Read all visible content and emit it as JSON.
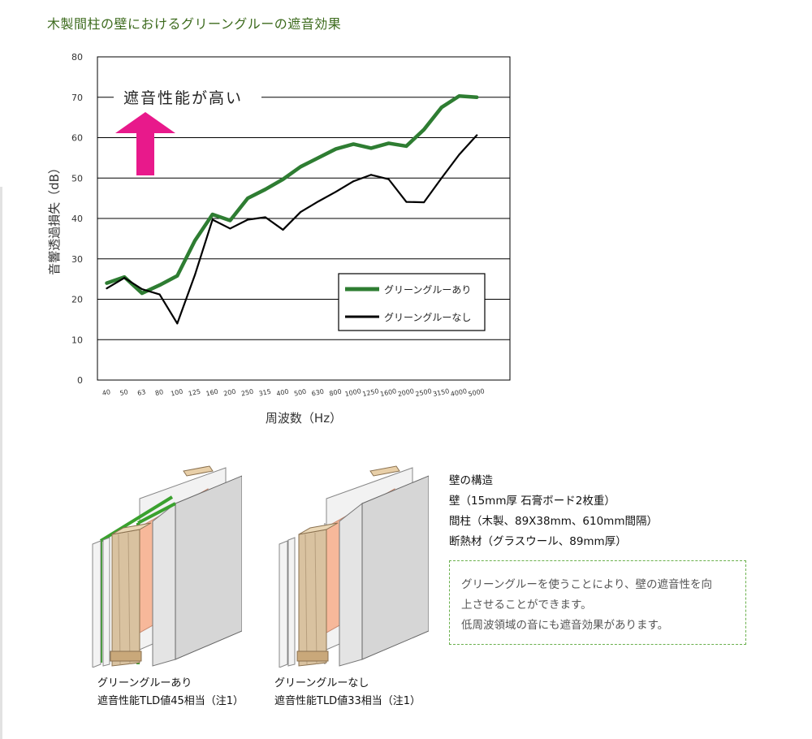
{
  "page": {
    "title": "木製間柱の壁におけるグリーングルーの遮音効果"
  },
  "chart_data": {
    "type": "line",
    "title": "",
    "xlabel": "周波数（Hz）",
    "ylabel": "音響透過損失（dB）",
    "ylim": [
      0,
      80
    ],
    "yticks": [
      0,
      10,
      20,
      30,
      40,
      50,
      60,
      70,
      80
    ],
    "categories": [
      "40",
      "50",
      "63",
      "80",
      "100",
      "125",
      "160",
      "200",
      "250",
      "315",
      "400",
      "500",
      "630",
      "800",
      "1000",
      "1250",
      "1600",
      "2000",
      "2500",
      "3150",
      "4000",
      "5000"
    ],
    "grid": "horizontal",
    "legend_position": "bottom-right",
    "annotation": "遮音性能が高い",
    "series": [
      {
        "name": "グリーングルーあり",
        "color": "#2e7d32",
        "points": [
          [
            0,
            24
          ],
          [
            1,
            25.5
          ],
          [
            2,
            21.5
          ],
          [
            3,
            23.5
          ],
          [
            4,
            25.8
          ],
          [
            5,
            34.5
          ],
          [
            6,
            41
          ],
          [
            7,
            39.5
          ],
          [
            8,
            45
          ],
          [
            9,
            47.2
          ],
          [
            10,
            49.7
          ],
          [
            11,
            52.8
          ],
          [
            12,
            55
          ],
          [
            13,
            57.2
          ],
          [
            14,
            58.4
          ],
          [
            15,
            57.4
          ],
          [
            16,
            58.6
          ],
          [
            17,
            57.9
          ],
          [
            18,
            62
          ],
          [
            19,
            67.5
          ],
          [
            20,
            70.3
          ],
          [
            21,
            70
          ]
        ]
      },
      {
        "name": "グリーングルーなし",
        "color": "#000000",
        "points": [
          [
            0,
            22.7
          ],
          [
            1,
            25.3
          ],
          [
            2,
            22.5
          ],
          [
            3,
            21.2
          ],
          [
            4,
            14
          ],
          [
            5,
            26
          ],
          [
            6,
            39.7
          ],
          [
            7,
            37.5
          ],
          [
            8,
            39.7
          ],
          [
            9,
            40.3
          ],
          [
            10,
            37.2
          ],
          [
            11,
            41.6
          ],
          [
            12,
            44.2
          ],
          [
            13,
            46.6
          ],
          [
            14,
            49.2
          ],
          [
            15,
            50.8
          ],
          [
            16,
            49.7
          ],
          [
            17,
            44.1
          ],
          [
            18,
            44
          ],
          [
            19,
            50
          ],
          [
            20,
            55.8
          ],
          [
            21,
            60.6
          ]
        ]
      }
    ],
    "arrow_color": "#e8198b"
  },
  "figures": [
    {
      "caption_line1": "グリーングルーあり",
      "caption_line2": "遮音性能TLD値45相当（注1）",
      "glue_color": "#3aa12e"
    },
    {
      "caption_line1": "グリーングルーなし",
      "caption_line2": "遮音性能TLD値33相当（注1）"
    }
  ],
  "structure": {
    "heading": "壁の構造",
    "line1": "壁（15mm厚 石膏ボード2枚重）",
    "line2": "間柱（木製、89X38mm、610mm間隔）",
    "line3": "断熱材（グラスウール、89mm厚）"
  },
  "note": {
    "line1": "グリーングルーを使うことにより、壁の遮音性を向",
    "line2": "上させることができます。",
    "line3": "低周波領域の音にも遮音効果があります。"
  }
}
